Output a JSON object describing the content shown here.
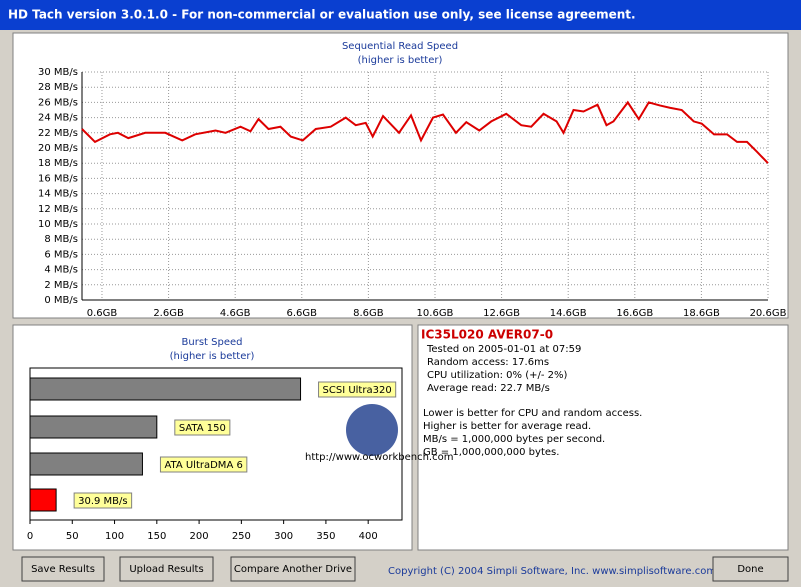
{
  "window": {
    "title": "HD Tach version 3.0.1.0  - For non-commercial or evaluation use only, see license agreement."
  },
  "chart_data": [
    {
      "type": "line",
      "title": "Sequential Read Speed",
      "subtitle": "(higher is better)",
      "color": "#dd0000",
      "grid": true,
      "x": [
        0,
        0.39,
        0.84,
        1.08,
        1.39,
        1.9,
        2.5,
        3.01,
        3.4,
        4.01,
        4.31,
        4.76,
        5.06,
        5.3,
        5.6,
        5.96,
        6.27,
        6.63,
        7.02,
        7.47,
        7.92,
        8.22,
        8.52,
        8.73,
        9.04,
        9.52,
        9.88,
        10.18,
        10.54,
        10.84,
        11.23,
        11.54,
        11.93,
        12.29,
        12.74,
        13.19,
        13.49,
        13.86,
        14.25,
        14.46,
        14.76,
        15.06,
        15.48,
        15.75,
        15.96,
        16.39,
        16.72,
        17.02,
        17.35,
        17.65,
        18.01,
        18.37,
        18.61,
        18.98,
        19.37,
        19.67,
        19.97,
        20.27,
        20.6
      ],
      "values": [
        22.5,
        20.8,
        21.8,
        22,
        21.3,
        22,
        22,
        21,
        21.8,
        22.3,
        22,
        22.8,
        22.2,
        23.8,
        22.5,
        22.8,
        21.5,
        21,
        22.5,
        22.8,
        24,
        23,
        23.3,
        21.5,
        24.2,
        22,
        24.3,
        21,
        24,
        24.4,
        22,
        23.4,
        22.3,
        23.5,
        24.5,
        23,
        22.8,
        24.5,
        23.5,
        22,
        25,
        24.8,
        25.7,
        23,
        23.5,
        26,
        23.8,
        26,
        25.6,
        25.3,
        25,
        23.5,
        23.2,
        21.8,
        21.8,
        20.8,
        20.8,
        19.5,
        18
      ],
      "xlim": [
        0,
        20.6
      ],
      "ylim": [
        0,
        30
      ],
      "xticks": [
        {
          "value": 0.6,
          "label": "0.6GB"
        },
        {
          "value": 2.6,
          "label": "2.6GB"
        },
        {
          "value": 4.6,
          "label": "4.6GB"
        },
        {
          "value": 6.6,
          "label": "6.6GB"
        },
        {
          "value": 8.6,
          "label": "8.6GB"
        },
        {
          "value": 10.6,
          "label": "10.6GB"
        },
        {
          "value": 12.6,
          "label": "12.6GB"
        },
        {
          "value": 14.6,
          "label": "14.6GB"
        },
        {
          "value": 16.6,
          "label": "16.6GB"
        },
        {
          "value": 18.6,
          "label": "18.6GB"
        },
        {
          "value": 20.6,
          "label": "20.6GB"
        }
      ],
      "yticks": [
        {
          "value": 0,
          "label": "0 MB/s"
        },
        {
          "value": 2,
          "label": "2 MB/s"
        },
        {
          "value": 4,
          "label": "4 MB/s"
        },
        {
          "value": 6,
          "label": "6 MB/s"
        },
        {
          "value": 8,
          "label": "8 MB/s"
        },
        {
          "value": 10,
          "label": "10 MB/s"
        },
        {
          "value": 12,
          "label": "12 MB/s"
        },
        {
          "value": 14,
          "label": "14 MB/s"
        },
        {
          "value": 16,
          "label": "16 MB/s"
        },
        {
          "value": 18,
          "label": "18 MB/s"
        },
        {
          "value": 20,
          "label": "20 MB/s"
        },
        {
          "value": 22,
          "label": "22 MB/s"
        },
        {
          "value": 24,
          "label": "24 MB/s"
        },
        {
          "value": 26,
          "label": "26 MB/s"
        },
        {
          "value": 28,
          "label": "28 MB/s"
        },
        {
          "value": 30,
          "label": "30 MB/s"
        }
      ]
    },
    {
      "type": "hbar",
      "title": "Burst Speed",
      "subtitle": "(higher is better)",
      "categories": [
        "SCSI Ultra320",
        "SATA 150",
        "ATA UltraDMA 6",
        null
      ],
      "values": [
        320,
        150,
        133,
        30.9
      ],
      "value_labels": [
        null,
        null,
        null,
        "30.9 MB/s"
      ],
      "colors": [
        "#808080",
        "#808080",
        "#808080",
        "#ff0000"
      ],
      "xlim": [
        0,
        440
      ],
      "xticks": [
        0,
        50,
        100,
        150,
        200,
        250,
        300,
        350,
        400
      ]
    }
  ],
  "info": {
    "drive": "IC35L020 AVER07-0",
    "lines": [
      "Tested on 2005-01-01 at 07:59",
      "Random access: 17.6ms",
      "CPU utilization: 0% (+/- 2%)",
      "Average read: 22.7 MB/s"
    ],
    "notes": [
      "Lower is better for CPU and random access.",
      "Higher is better for average read.",
      "MB/s = 1,000,000 bytes per second.",
      "GB = 1,000,000,000 bytes."
    ]
  },
  "watermark": "http://www.ocworkbench.com",
  "buttons": [
    "Save Results",
    "Upload Results",
    "Compare Another Drive",
    "Done"
  ],
  "copyright": "Copyright (C) 2004 Simpli Software, Inc. www.simplisoftware.com"
}
